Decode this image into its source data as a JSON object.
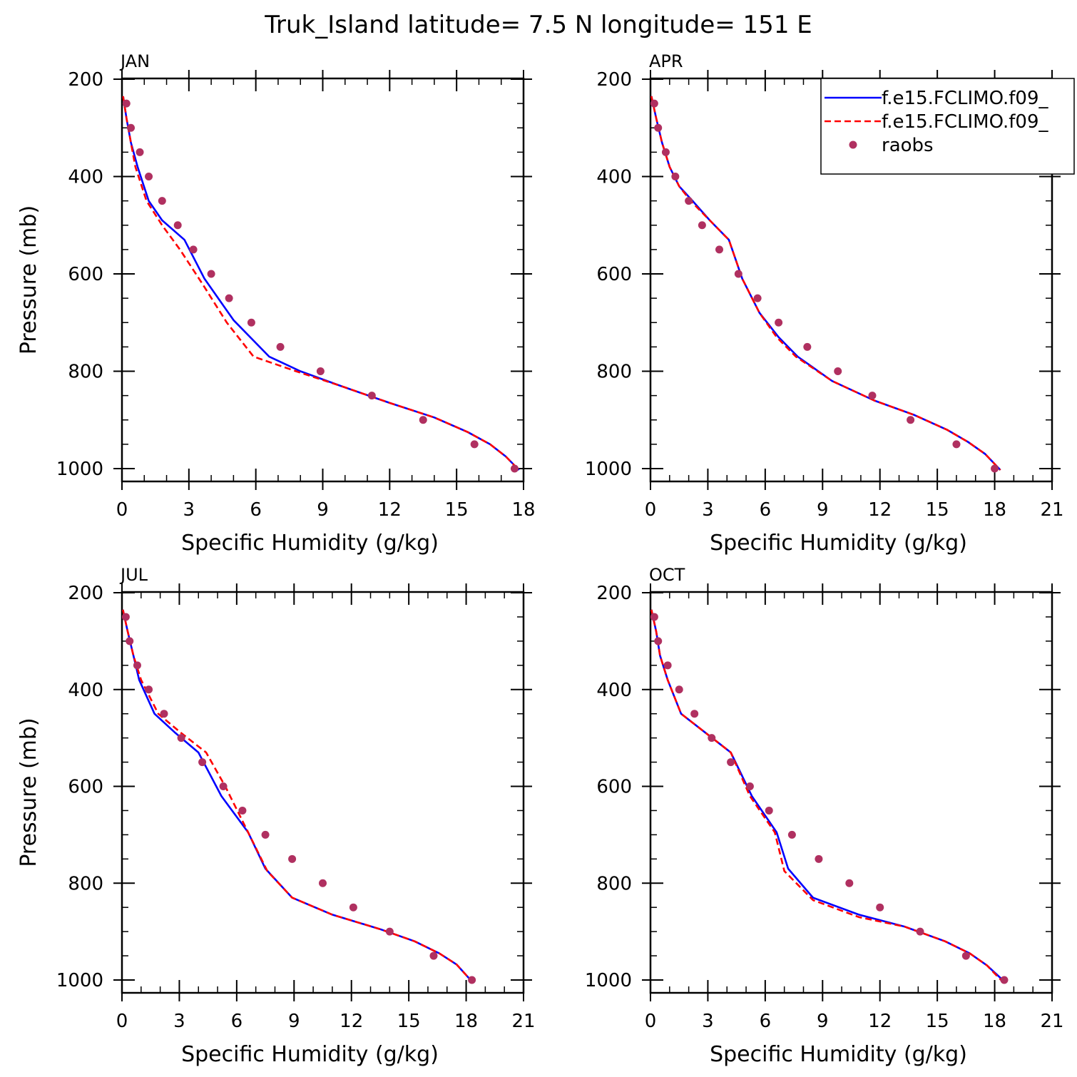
{
  "title": "Truk_Island  latitude= 7.5 N longitude= 151 E",
  "colors": {
    "model1": "#0000ff",
    "model2": "#ff0000",
    "obs": "#b03060",
    "axis": "#000000"
  },
  "legend": {
    "placement": "top-right of APR panel",
    "entries": [
      {
        "label": "f.e15.FCLIMO.f09_",
        "style": "solid",
        "color": "#0000ff"
      },
      {
        "label": "f.e15.FCLIMO.f09_",
        "style": "dashed",
        "color": "#ff0000"
      },
      {
        "label": "raobs",
        "style": "marker",
        "color": "#b03060"
      }
    ]
  },
  "chart_data": [
    {
      "type": "line",
      "panel": "JAN",
      "xlabel": "Specific Humidity (g/kg)",
      "ylabel": "Pressure (mb)",
      "xlim": [
        0,
        18
      ],
      "ylim": [
        200,
        1000
      ],
      "x_ticks": [
        0,
        3,
        6,
        9,
        12,
        15,
        18
      ],
      "y_ticks": [
        200,
        400,
        600,
        800,
        1000
      ],
      "y_inverted": true,
      "series": [
        {
          "style": "solid",
          "points": [
            [
              0.05,
              235
            ],
            [
              0.2,
              280
            ],
            [
              0.4,
              330
            ],
            [
              0.7,
              380
            ],
            [
              1.2,
              450
            ],
            [
              1.8,
              490
            ],
            [
              2.8,
              530
            ],
            [
              3.7,
              610
            ],
            [
              5.0,
              695
            ],
            [
              6.6,
              770
            ],
            [
              8.0,
              800
            ],
            [
              9.8,
              830
            ],
            [
              12.0,
              865
            ],
            [
              14.0,
              895
            ],
            [
              15.5,
              925
            ],
            [
              16.5,
              950
            ],
            [
              17.2,
              975
            ],
            [
              17.8,
              1003
            ]
          ]
        },
        {
          "style": "dashed",
          "points": [
            [
              0.05,
              235
            ],
            [
              0.2,
              280
            ],
            [
              0.4,
              330
            ],
            [
              0.6,
              380
            ],
            [
              1.1,
              450
            ],
            [
              1.8,
              500
            ],
            [
              2.6,
              550
            ],
            [
              3.6,
              620
            ],
            [
              4.7,
              700
            ],
            [
              5.9,
              770
            ],
            [
              7.8,
              800
            ],
            [
              9.8,
              830
            ],
            [
              12.0,
              865
            ],
            [
              14.0,
              895
            ],
            [
              15.5,
              925
            ],
            [
              16.5,
              950
            ],
            [
              17.2,
              975
            ],
            [
              17.8,
              1003
            ]
          ]
        },
        {
          "style": "marker",
          "points": [
            [
              0.2,
              250
            ],
            [
              0.4,
              300
            ],
            [
              0.8,
              350
            ],
            [
              1.2,
              400
            ],
            [
              1.8,
              450
            ],
            [
              2.5,
              500
            ],
            [
              3.2,
              550
            ],
            [
              4.0,
              600
            ],
            [
              4.8,
              650
            ],
            [
              5.8,
              700
            ],
            [
              7.1,
              750
            ],
            [
              8.9,
              800
            ],
            [
              11.2,
              850
            ],
            [
              13.5,
              900
            ],
            [
              15.8,
              950
            ],
            [
              17.6,
              1000
            ]
          ]
        }
      ]
    },
    {
      "type": "line",
      "panel": "APR",
      "xlabel": "Specific Humidity (g/kg)",
      "ylabel": "",
      "xlim": [
        0,
        21
      ],
      "ylim": [
        200,
        1000
      ],
      "x_ticks": [
        0,
        3,
        6,
        9,
        12,
        15,
        18,
        21
      ],
      "y_ticks": [
        200,
        400,
        600,
        800,
        1000
      ],
      "y_inverted": true,
      "series": [
        {
          "style": "solid",
          "points": [
            [
              0.05,
              235
            ],
            [
              0.3,
              280
            ],
            [
              0.6,
              330
            ],
            [
              1.0,
              380
            ],
            [
              1.5,
              420
            ],
            [
              2.2,
              450
            ],
            [
              3.1,
              490
            ],
            [
              4.1,
              530
            ],
            [
              4.8,
              610
            ],
            [
              5.7,
              680
            ],
            [
              6.7,
              730
            ],
            [
              7.7,
              770
            ],
            [
              9.5,
              820
            ],
            [
              11.7,
              860
            ],
            [
              13.8,
              890
            ],
            [
              15.5,
              920
            ],
            [
              16.6,
              945
            ],
            [
              17.5,
              970
            ],
            [
              18.3,
              1003
            ]
          ]
        },
        {
          "style": "dashed",
          "points": [
            [
              0.05,
              235
            ],
            [
              0.3,
              280
            ],
            [
              0.6,
              330
            ],
            [
              1.0,
              380
            ],
            [
              1.5,
              420
            ],
            [
              2.1,
              450
            ],
            [
              3.1,
              490
            ],
            [
              4.1,
              530
            ],
            [
              4.8,
              610
            ],
            [
              5.7,
              680
            ],
            [
              6.6,
              730
            ],
            [
              7.6,
              770
            ],
            [
              9.5,
              820
            ],
            [
              11.7,
              860
            ],
            [
              13.8,
              890
            ],
            [
              15.5,
              920
            ],
            [
              16.6,
              945
            ],
            [
              17.5,
              970
            ],
            [
              18.3,
              1003
            ]
          ]
        },
        {
          "style": "marker",
          "points": [
            [
              0.2,
              250
            ],
            [
              0.4,
              300
            ],
            [
              0.8,
              350
            ],
            [
              1.3,
              400
            ],
            [
              2.0,
              450
            ],
            [
              2.7,
              500
            ],
            [
              3.6,
              550
            ],
            [
              4.6,
              600
            ],
            [
              5.6,
              650
            ],
            [
              6.7,
              700
            ],
            [
              8.2,
              750
            ],
            [
              9.8,
              800
            ],
            [
              11.6,
              850
            ],
            [
              13.6,
              900
            ],
            [
              16.0,
              950
            ],
            [
              18.0,
              1000
            ]
          ]
        }
      ]
    },
    {
      "type": "line",
      "panel": "JUL",
      "xlabel": "Specific Humidity (g/kg)",
      "ylabel": "Pressure (mb)",
      "xlim": [
        0,
        21
      ],
      "ylim": [
        200,
        1000
      ],
      "x_ticks": [
        0,
        3,
        6,
        9,
        12,
        15,
        18,
        21
      ],
      "y_ticks": [
        200,
        400,
        600,
        800,
        1000
      ],
      "y_inverted": true,
      "series": [
        {
          "style": "solid",
          "points": [
            [
              0.05,
              235
            ],
            [
              0.3,
              280
            ],
            [
              0.6,
              330
            ],
            [
              0.9,
              380
            ],
            [
              1.7,
              450
            ],
            [
              2.8,
              490
            ],
            [
              4.0,
              530
            ],
            [
              5.2,
              620
            ],
            [
              6.6,
              695
            ],
            [
              7.5,
              770
            ],
            [
              8.9,
              830
            ],
            [
              11.0,
              865
            ],
            [
              13.5,
              895
            ],
            [
              15.3,
              920
            ],
            [
              16.6,
              945
            ],
            [
              17.5,
              968
            ],
            [
              18.3,
              1003
            ]
          ]
        },
        {
          "style": "dashed",
          "points": [
            [
              0.05,
              235
            ],
            [
              0.3,
              280
            ],
            [
              0.6,
              330
            ],
            [
              1.0,
              380
            ],
            [
              1.9,
              450
            ],
            [
              3.1,
              490
            ],
            [
              4.4,
              530
            ],
            [
              5.4,
              600
            ],
            [
              6.6,
              695
            ],
            [
              7.6,
              775
            ],
            [
              8.9,
              830
            ],
            [
              11.0,
              865
            ],
            [
              13.5,
              895
            ],
            [
              15.3,
              920
            ],
            [
              16.6,
              945
            ],
            [
              17.5,
              968
            ],
            [
              18.3,
              1003
            ]
          ]
        },
        {
          "style": "marker",
          "points": [
            [
              0.2,
              250
            ],
            [
              0.4,
              300
            ],
            [
              0.8,
              350
            ],
            [
              1.4,
              400
            ],
            [
              2.2,
              450
            ],
            [
              3.1,
              500
            ],
            [
              4.2,
              550
            ],
            [
              5.3,
              600
            ],
            [
              6.3,
              650
            ],
            [
              7.5,
              700
            ],
            [
              8.9,
              750
            ],
            [
              10.5,
              800
            ],
            [
              12.1,
              850
            ],
            [
              14.0,
              900
            ],
            [
              16.3,
              950
            ],
            [
              18.3,
              1000
            ]
          ]
        }
      ]
    },
    {
      "type": "line",
      "panel": "OCT",
      "xlabel": "Specific Humidity (g/kg)",
      "ylabel": "",
      "xlim": [
        0,
        21
      ],
      "ylim": [
        200,
        1000
      ],
      "x_ticks": [
        0,
        3,
        6,
        9,
        12,
        15,
        18,
        21
      ],
      "y_ticks": [
        200,
        400,
        600,
        800,
        1000
      ],
      "y_inverted": true,
      "series": [
        {
          "style": "solid",
          "points": [
            [
              0.05,
              235
            ],
            [
              0.3,
              280
            ],
            [
              0.5,
              330
            ],
            [
              0.9,
              380
            ],
            [
              1.6,
              450
            ],
            [
              2.9,
              490
            ],
            [
              4.2,
              530
            ],
            [
              5.3,
              620
            ],
            [
              6.6,
              695
            ],
            [
              7.2,
              770
            ],
            [
              8.5,
              830
            ],
            [
              10.9,
              865
            ],
            [
              13.3,
              890
            ],
            [
              15.4,
              920
            ],
            [
              16.7,
              945
            ],
            [
              17.6,
              970
            ],
            [
              18.5,
              1003
            ]
          ]
        },
        {
          "style": "dashed",
          "points": [
            [
              0.05,
              235
            ],
            [
              0.3,
              280
            ],
            [
              0.5,
              330
            ],
            [
              0.9,
              380
            ],
            [
              1.6,
              450
            ],
            [
              2.9,
              490
            ],
            [
              4.2,
              530
            ],
            [
              5.2,
              620
            ],
            [
              6.5,
              695
            ],
            [
              7.0,
              775
            ],
            [
              8.5,
              835
            ],
            [
              10.9,
              870
            ],
            [
              13.3,
              890
            ],
            [
              15.4,
              920
            ],
            [
              16.7,
              945
            ],
            [
              17.6,
              970
            ],
            [
              18.4,
              1003
            ]
          ]
        },
        {
          "style": "marker",
          "points": [
            [
              0.2,
              250
            ],
            [
              0.4,
              300
            ],
            [
              0.9,
              350
            ],
            [
              1.5,
              400
            ],
            [
              2.3,
              450
            ],
            [
              3.2,
              500
            ],
            [
              4.2,
              550
            ],
            [
              5.2,
              600
            ],
            [
              6.2,
              650
            ],
            [
              7.4,
              700
            ],
            [
              8.8,
              750
            ],
            [
              10.4,
              800
            ],
            [
              12.0,
              850
            ],
            [
              14.1,
              900
            ],
            [
              16.5,
              950
            ],
            [
              18.5,
              1000
            ]
          ]
        }
      ]
    }
  ]
}
